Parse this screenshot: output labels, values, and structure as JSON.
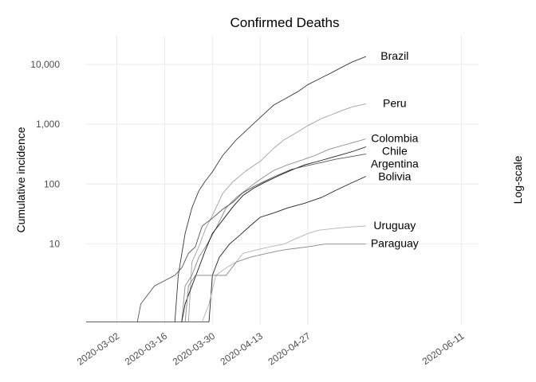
{
  "chart_data": {
    "type": "line",
    "title": "Confirmed Deaths",
    "ylabel": "Cumulative incidence",
    "right_label": "Log-scale",
    "y_scale": "log10",
    "ylim": [
      0.45,
      30000
    ],
    "xlim": [
      "2020-02-22",
      "2020-06-16"
    ],
    "y_ticks": [
      10,
      100,
      1000,
      10000
    ],
    "y_tick_labels": [
      "10",
      "100",
      "1,000",
      "10,000"
    ],
    "x_ticks": [
      "2020-03-02",
      "2020-03-16",
      "2020-03-30",
      "2020-04-13",
      "2020-04-27",
      "2020-06-11"
    ],
    "x_tick_labels": [
      "2020-03-02",
      "2020-03-16",
      "2020-03-30",
      "2020-04-13",
      "2020-04-27",
      "2020-06-11"
    ],
    "grid": true,
    "legend": "labels at line ends (right)",
    "series": [
      {
        "name": "Brazil",
        "color": "#3a3a3a",
        "points": [
          [
            "2020-03-19",
            0.5
          ],
          [
            "2020-03-20",
            3
          ],
          [
            "2020-03-22",
            15
          ],
          [
            "2020-03-24",
            40
          ],
          [
            "2020-03-26",
            77
          ],
          [
            "2020-03-28",
            114
          ],
          [
            "2020-03-30",
            160
          ],
          [
            "2020-04-02",
            300
          ],
          [
            "2020-04-06",
            550
          ],
          [
            "2020-04-10",
            900
          ],
          [
            "2020-04-13",
            1300
          ],
          [
            "2020-04-17",
            2100
          ],
          [
            "2020-04-20",
            2600
          ],
          [
            "2020-04-24",
            3500
          ],
          [
            "2020-04-27",
            4600
          ],
          [
            "2020-05-01",
            6000
          ],
          [
            "2020-05-04",
            7300
          ],
          [
            "2020-05-07",
            9000
          ],
          [
            "2020-05-10",
            11000
          ],
          [
            "2020-05-14",
            13500
          ]
        ]
      },
      {
        "name": "Peru",
        "color": "#a0a0a0",
        "points": [
          [
            "2020-03-23",
            0.5
          ],
          [
            "2020-03-24",
            5
          ],
          [
            "2020-03-26",
            9
          ],
          [
            "2020-03-28",
            18
          ],
          [
            "2020-03-30",
            30
          ],
          [
            "2020-04-02",
            70
          ],
          [
            "2020-04-05",
            110
          ],
          [
            "2020-04-09",
            170
          ],
          [
            "2020-04-13",
            240
          ],
          [
            "2020-04-17",
            400
          ],
          [
            "2020-04-20",
            550
          ],
          [
            "2020-04-24",
            750
          ],
          [
            "2020-04-27",
            950
          ],
          [
            "2020-05-01",
            1250
          ],
          [
            "2020-05-04",
            1450
          ],
          [
            "2020-05-07",
            1700
          ],
          [
            "2020-05-10",
            1950
          ],
          [
            "2020-05-14",
            2200
          ]
        ]
      },
      {
        "name": "Colombia",
        "color": "#8a8a8a",
        "points": [
          [
            "2020-03-21",
            0.5
          ],
          [
            "2020-03-22",
            2
          ],
          [
            "2020-03-24",
            3
          ],
          [
            "2020-03-26",
            6
          ],
          [
            "2020-03-28",
            9
          ],
          [
            "2020-03-31",
            18
          ],
          [
            "2020-04-03",
            40
          ],
          [
            "2020-04-06",
            60
          ],
          [
            "2020-04-10",
            90
          ],
          [
            "2020-04-13",
            120
          ],
          [
            "2020-04-17",
            170
          ],
          [
            "2020-04-21",
            210
          ],
          [
            "2020-04-25",
            250
          ],
          [
            "2020-04-29",
            300
          ],
          [
            "2020-05-03",
            380
          ],
          [
            "2020-05-07",
            440
          ],
          [
            "2020-05-11",
            510
          ],
          [
            "2020-05-14",
            570
          ]
        ]
      },
      {
        "name": "Chile",
        "color": "#1a1a1a",
        "points": [
          [
            "2020-03-21",
            0.5
          ],
          [
            "2020-03-22",
            1
          ],
          [
            "2020-03-24",
            2
          ],
          [
            "2020-03-26",
            4
          ],
          [
            "2020-03-28",
            8
          ],
          [
            "2020-03-30",
            15
          ],
          [
            "2020-04-02",
            25
          ],
          [
            "2020-04-05",
            42
          ],
          [
            "2020-04-08",
            65
          ],
          [
            "2020-04-11",
            85
          ],
          [
            "2020-04-14",
            105
          ],
          [
            "2020-04-18",
            135
          ],
          [
            "2020-04-22",
            170
          ],
          [
            "2020-04-26",
            210
          ],
          [
            "2020-05-01",
            250
          ],
          [
            "2020-05-05",
            290
          ],
          [
            "2020-05-10",
            350
          ],
          [
            "2020-05-14",
            420
          ]
        ]
      },
      {
        "name": "Argentina",
        "color": "#555555",
        "points": [
          [
            "2020-03-08",
            0.5
          ],
          [
            "2020-03-09",
            1
          ],
          [
            "2020-03-13",
            2
          ],
          [
            "2020-03-19",
            3
          ],
          [
            "2020-03-21",
            4
          ],
          [
            "2020-03-23",
            7
          ],
          [
            "2020-03-25",
            9
          ],
          [
            "2020-03-27",
            20
          ],
          [
            "2020-03-30",
            27
          ],
          [
            "2020-04-02",
            38
          ],
          [
            "2020-04-05",
            50
          ],
          [
            "2020-04-08",
            72
          ],
          [
            "2020-04-11",
            90
          ],
          [
            "2020-04-14",
            110
          ],
          [
            "2020-04-18",
            140
          ],
          [
            "2020-04-22",
            175
          ],
          [
            "2020-04-26",
            200
          ],
          [
            "2020-05-01",
            230
          ],
          [
            "2020-05-05",
            260
          ],
          [
            "2020-05-10",
            290
          ],
          [
            "2020-05-14",
            320
          ]
        ]
      },
      {
        "name": "Bolivia",
        "color": "#222222",
        "points": [
          [
            "2020-03-29",
            0.5
          ],
          [
            "2020-03-30",
            3
          ],
          [
            "2020-04-01",
            6
          ],
          [
            "2020-04-04",
            10
          ],
          [
            "2020-04-07",
            14
          ],
          [
            "2020-04-10",
            20
          ],
          [
            "2020-04-13",
            28
          ],
          [
            "2020-04-17",
            33
          ],
          [
            "2020-04-21",
            40
          ],
          [
            "2020-04-26",
            48
          ],
          [
            "2020-05-01",
            60
          ],
          [
            "2020-05-05",
            78
          ],
          [
            "2020-05-09",
            100
          ],
          [
            "2020-05-14",
            135
          ]
        ]
      },
      {
        "name": "Uruguay",
        "color": "#b3b3b3",
        "points": [
          [
            "2020-03-27",
            0.5
          ],
          [
            "2020-03-29",
            1
          ],
          [
            "2020-03-31",
            3
          ],
          [
            "2020-04-03",
            4
          ],
          [
            "2020-04-06",
            5
          ],
          [
            "2020-04-08",
            7
          ],
          [
            "2020-04-12",
            8
          ],
          [
            "2020-04-16",
            9
          ],
          [
            "2020-04-20",
            10
          ],
          [
            "2020-04-23",
            12
          ],
          [
            "2020-04-27",
            15
          ],
          [
            "2020-04-30",
            17
          ],
          [
            "2020-05-04",
            18
          ],
          [
            "2020-05-08",
            19
          ],
          [
            "2020-05-14",
            20
          ]
        ]
      },
      {
        "name": "Paraguay",
        "color": "#888888",
        "points": [
          [
            "2020-03-22",
            0.5
          ],
          [
            "2020-03-23",
            2
          ],
          [
            "2020-03-25",
            3
          ],
          [
            "2020-04-03",
            3
          ],
          [
            "2020-04-06",
            5
          ],
          [
            "2020-04-10",
            6
          ],
          [
            "2020-04-15",
            7
          ],
          [
            "2020-04-20",
            8
          ],
          [
            "2020-04-27",
            9
          ],
          [
            "2020-05-02",
            10
          ],
          [
            "2020-05-14",
            10
          ]
        ]
      }
    ],
    "flat_baseline": {
      "color": "#4a4a4a",
      "y": 0.5,
      "from": "2020-02-22",
      "to": "2020-03-29"
    }
  }
}
